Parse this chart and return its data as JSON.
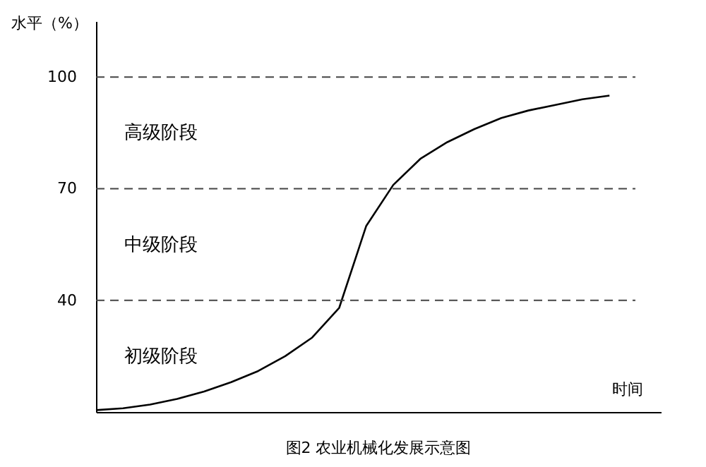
{
  "chart_data": {
    "type": "line",
    "title": "图2  农业机械化发展示意图",
    "xlabel": "时间",
    "ylabel": "水平（%）",
    "categories": [
      null,
      null,
      null,
      null,
      null,
      null,
      null,
      null,
      null,
      null,
      null,
      null,
      null,
      null,
      null,
      null,
      null,
      null,
      null,
      null
    ],
    "series": [
      {
        "color": "#000000",
        "values": [
          10.5,
          11,
          12,
          13.5,
          15.5,
          18,
          21,
          25,
          30,
          38,
          60,
          71,
          78,
          82.5,
          86,
          89,
          91,
          92.5,
          94,
          95
        ]
      }
    ],
    "ylim": [
      10,
      115
    ],
    "yticks": [
      40,
      70,
      100
    ],
    "grid": false,
    "marker": "none",
    "line_style": "solid",
    "ref_lines": [
      {
        "axis": "y",
        "value": 100,
        "line_style": "dashed",
        "color": "#444444"
      },
      {
        "axis": "y",
        "value": 70,
        "line_style": "dashed",
        "color": "#444444"
      },
      {
        "axis": "y",
        "value": 40,
        "line_style": "dashed",
        "color": "#444444"
      }
    ],
    "annotations": [
      "高级阶段",
      "中级阶段",
      "初级阶段"
    ]
  }
}
